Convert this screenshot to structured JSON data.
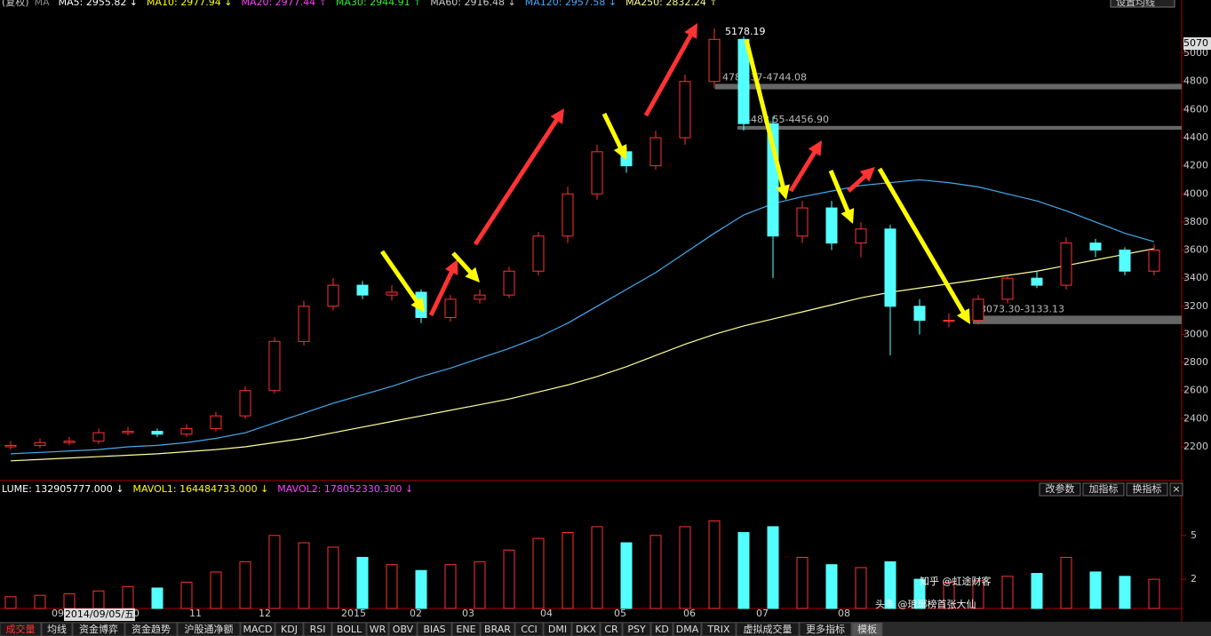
{
  "chart_data": {
    "type": "candlestick",
    "header_prefix": "(复权)",
    "header_ma": "MA",
    "ma_labels": [
      {
        "text": "MA5: 2955.82 ↓",
        "color": "#ffffff"
      },
      {
        "text": "MA10: 2977.94 ↓",
        "color": "#ffff00"
      },
      {
        "text": "MA20: 2977.44 ↑",
        "color": "#ff44ff"
      },
      {
        "text": "MA30: 2944.91 ↑",
        "color": "#33ee33"
      },
      {
        "text": "MA60: 2916.48 ↓",
        "color": "#cccccc"
      },
      {
        "text": "MA120: 2957.58 ↓",
        "color": "#44aaff"
      },
      {
        "text": "MA250: 2832.24 ↑",
        "color": "#ffff88"
      }
    ],
    "setting_button": "设置均线",
    "open": [
      2200,
      2210,
      2230,
      2240,
      2300,
      2310,
      2290,
      2330,
      2420,
      2600,
      2950,
      3200,
      3350,
      3280,
      3300,
      3120,
      3250,
      3280,
      3450,
      3700,
      4000,
      4300,
      4200,
      4400,
      4800,
      5100,
      4500,
      3700,
      3900,
      3650,
      3750,
      3200,
      3100,
      3100,
      3250,
      3400,
      3350,
      3650,
      3600,
      3450
    ],
    "close": [
      2210,
      2230,
      2240,
      2300,
      2310,
      2290,
      2330,
      2420,
      2600,
      2950,
      3200,
      3350,
      3280,
      3300,
      3120,
      3250,
      3280,
      3450,
      3700,
      4000,
      4300,
      4200,
      4400,
      4800,
      5100,
      4500,
      3700,
      3900,
      3650,
      3750,
      3200,
      3100,
      3100,
      3250,
      3400,
      3350,
      3650,
      3600,
      3450,
      3600
    ],
    "high": [
      2240,
      2260,
      2270,
      2330,
      2340,
      2330,
      2360,
      2450,
      2630,
      2980,
      3240,
      3400,
      3380,
      3350,
      3320,
      3280,
      3320,
      3480,
      3730,
      4050,
      4350,
      4330,
      4450,
      4850,
      5178.19,
      5120,
      4550,
      3950,
      3950,
      3800,
      3780,
      3250,
      3150,
      3280,
      3420,
      3450,
      3690,
      3680,
      3620,
      3640
    ],
    "low": [
      2180,
      2190,
      2210,
      2220,
      2280,
      2270,
      2270,
      2310,
      2400,
      2580,
      2920,
      3170,
      3250,
      3240,
      3080,
      3090,
      3220,
      3260,
      3420,
      3650,
      3960,
      4150,
      4170,
      4350,
      4750,
      4450,
      3400,
      3650,
      3600,
      3550,
      2850,
      3000,
      3050,
      3070,
      3220,
      3330,
      3320,
      3550,
      3420,
      3420
    ],
    "up_color": "#ff3232",
    "down_color": "#54ffff",
    "series": [
      {
        "name": "MA120",
        "color": "#44aaee",
        "values": [
          2150,
          2160,
          2170,
          2180,
          2200,
          2210,
          2230,
          2260,
          2300,
          2370,
          2440,
          2510,
          2570,
          2630,
          2700,
          2760,
          2830,
          2900,
          2980,
          3080,
          3200,
          3320,
          3440,
          3580,
          3720,
          3850,
          3930,
          3980,
          4020,
          4060,
          4080,
          4100,
          4080,
          4050,
          4000,
          3950,
          3880,
          3800,
          3720,
          3660
        ]
      },
      {
        "name": "MA250",
        "color": "#ffff99",
        "values": [
          2100,
          2110,
          2120,
          2130,
          2140,
          2150,
          2165,
          2180,
          2200,
          2230,
          2260,
          2300,
          2340,
          2380,
          2420,
          2460,
          2500,
          2540,
          2590,
          2640,
          2700,
          2770,
          2850,
          2930,
          3000,
          3060,
          3110,
          3160,
          3210,
          3260,
          3300,
          3330,
          3360,
          3390,
          3420,
          3450,
          3490,
          3530,
          3570,
          3610
        ]
      }
    ],
    "ylim": [
      1966,
      5380
    ],
    "yticks": [
      2200,
      2400,
      2600,
      2800,
      3000,
      3200,
      3400,
      3600,
      3800,
      4000,
      4200,
      4400,
      4600,
      4800,
      5000
    ],
    "cursor_price": 5070,
    "peak_label": "5178.19",
    "levels": [
      {
        "high": 4783.37,
        "low": 4744.08,
        "label": "4783.37-4744.08"
      },
      {
        "high": 4483.55,
        "low": 4456.9,
        "label": "4483.55-4456.90"
      },
      {
        "high": 3133.13,
        "low": 3073.3,
        "label": "3073.30-3133.13"
      }
    ],
    "volume_header": [
      {
        "text": "LUME: 132905777.000 ↓",
        "color": "#ffffff"
      },
      {
        "text": "MAVOL1: 164484733.000 ↓",
        "color": "#ffff00"
      },
      {
        "text": "MAVOL2: 178052330.300 ↓",
        "color": "#ff44ff"
      }
    ],
    "volume_buttons": [
      "改参数",
      "加指标",
      "换指标",
      "×"
    ],
    "volume": [
      0.8,
      0.9,
      1.0,
      1.2,
      1.5,
      1.4,
      1.8,
      2.5,
      3.2,
      5.0,
      4.5,
      4.2,
      3.5,
      3.0,
      2.6,
      3.0,
      3.2,
      4.0,
      4.8,
      5.2,
      5.6,
      4.5,
      5.0,
      5.6,
      6.0,
      5.2,
      5.6,
      3.5,
      3.0,
      2.8,
      3.2,
      2.0,
      1.8,
      1.9,
      2.2,
      2.4,
      3.5,
      2.5,
      2.2,
      2.0
    ],
    "volume_ylim": [
      0,
      7.3
    ],
    "volume_yticks": [
      2,
      5
    ],
    "x_labels": [
      "09",
      "10",
      "11",
      "12",
      "2015",
      "02",
      "03",
      "04",
      "05",
      "06",
      "07",
      "08"
    ],
    "cursor_date": "2014/09/05/五",
    "tabs": [
      "成交量",
      "均线",
      "资金博弈",
      "资金趋势",
      "沪股通净额",
      "MACD",
      "KDJ",
      "RSI",
      "BOLL",
      "WR",
      "OBV",
      "BIAS",
      "ENE",
      "BRAR",
      "CCI",
      "DMI",
      "DKX",
      "CR",
      "PSY",
      "KD",
      "DMA",
      "TRIX",
      "虚拟成交量",
      "更多指标",
      "模板"
    ],
    "watermark_1": "知乎 @虹途财客",
    "watermark_2": "头条 @琅琊榜首张大仙"
  }
}
